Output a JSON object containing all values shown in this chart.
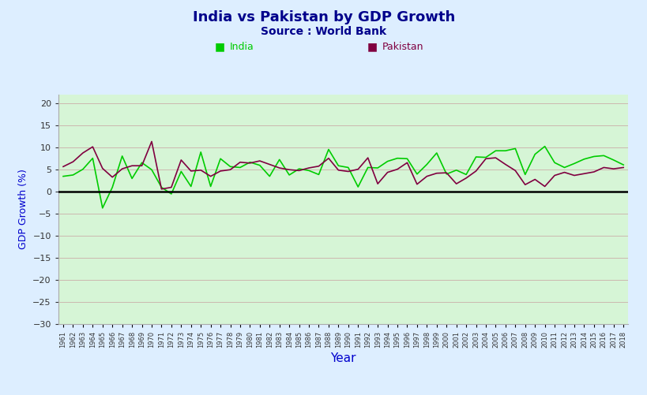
{
  "title": "India vs Pakistan by GDP Growth",
  "subtitle": "Source : World Bank",
  "xlabel": "Year",
  "ylabel": "GDP Growth (%)",
  "title_color": "#00008B",
  "subtitle_color": "#00008B",
  "xlabel_color": "#0000CD",
  "ylabel_color": "#0000CD",
  "background_color": "#d6f5d6",
  "outer_background": "#ddeeff",
  "india_color": "#00CC00",
  "pakistan_color": "#800040",
  "ylim": [
    -30,
    22
  ],
  "yticks": [
    -30,
    -25,
    -20,
    -15,
    -10,
    -5,
    0,
    5,
    10,
    15,
    20
  ],
  "years": [
    1961,
    1962,
    1963,
    1964,
    1965,
    1966,
    1967,
    1968,
    1969,
    1970,
    1971,
    1972,
    1973,
    1974,
    1975,
    1976,
    1977,
    1978,
    1979,
    1980,
    1981,
    1982,
    1983,
    1984,
    1985,
    1986,
    1987,
    1988,
    1989,
    1990,
    1991,
    1992,
    1993,
    1994,
    1995,
    1996,
    1997,
    1998,
    1999,
    2000,
    2001,
    2002,
    2003,
    2004,
    2005,
    2006,
    2007,
    2008,
    2009,
    2010,
    2011,
    2012,
    2013,
    2014,
    2015,
    2016,
    2017,
    2018
  ],
  "india_gdp": [
    3.5,
    3.8,
    5.1,
    7.6,
    -3.7,
    1.0,
    8.1,
    3.0,
    6.6,
    5.0,
    1.0,
    -0.5,
    4.6,
    1.2,
    9.0,
    1.2,
    7.5,
    5.7,
    5.5,
    6.7,
    6.0,
    3.5,
    7.3,
    3.8,
    5.2,
    4.8,
    3.9,
    9.6,
    5.9,
    5.5,
    1.1,
    5.5,
    5.4,
    6.9,
    7.6,
    7.5,
    4.0,
    6.2,
    8.8,
    4.0,
    4.9,
    3.9,
    7.9,
    7.8,
    9.3,
    9.3,
    9.8,
    3.9,
    8.5,
    10.3,
    6.6,
    5.5,
    6.4,
    7.4,
    8.0,
    8.2,
    7.2,
    6.1
  ],
  "pakistan_gdp": [
    5.7,
    6.8,
    8.8,
    10.2,
    5.3,
    3.3,
    5.2,
    5.9,
    5.9,
    11.4,
    0.6,
    1.0,
    7.2,
    4.7,
    4.9,
    3.5,
    4.7,
    5.0,
    6.7,
    6.5,
    7.0,
    6.2,
    5.4,
    5.0,
    4.8,
    5.4,
    5.8,
    7.6,
    4.9,
    4.6,
    5.1,
    7.7,
    1.8,
    4.4,
    5.1,
    6.6,
    1.7,
    3.5,
    4.2,
    4.3,
    1.8,
    3.1,
    4.7,
    7.5,
    7.7,
    6.2,
    4.8,
    1.6,
    2.8,
    1.2,
    3.7,
    4.4,
    3.7,
    4.1,
    4.5,
    5.5,
    5.2,
    5.5
  ]
}
